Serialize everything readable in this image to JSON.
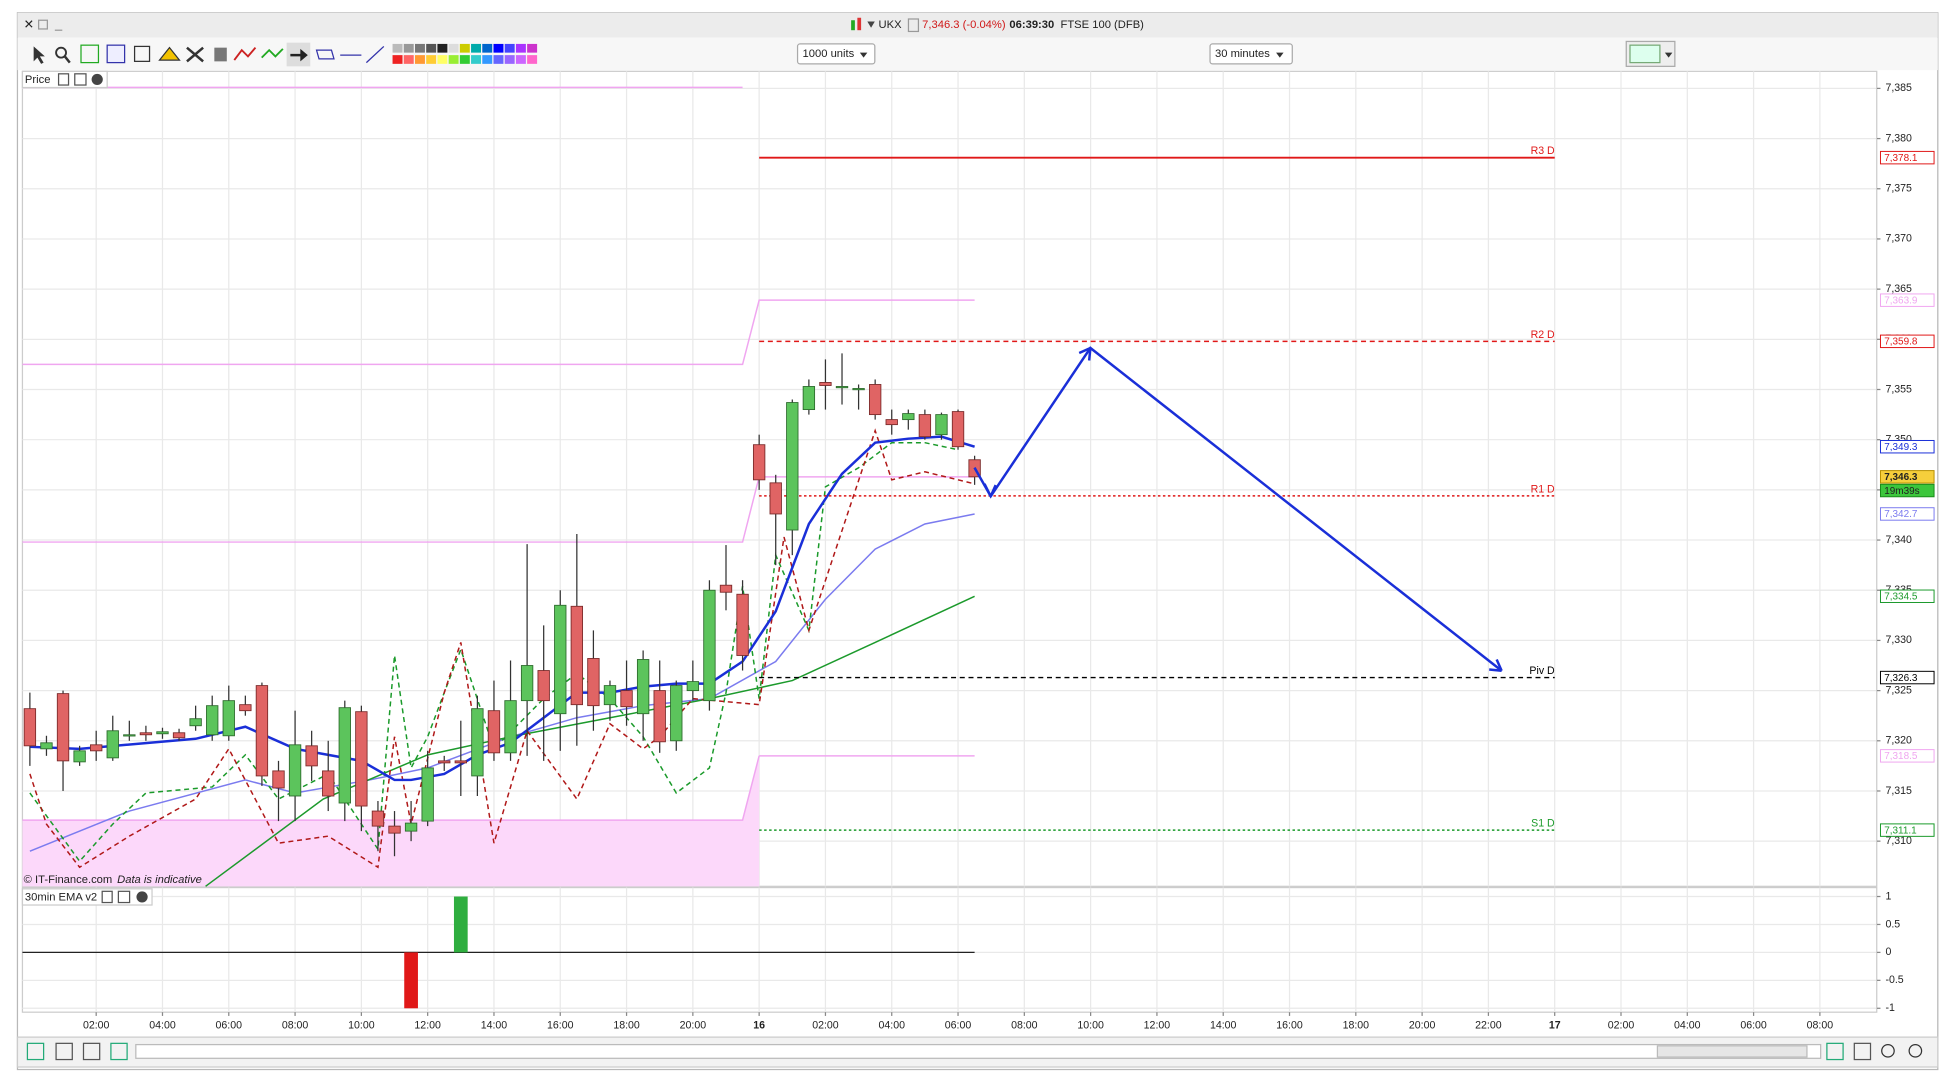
{
  "ui": {
    "symbol": "UKX",
    "quote": "7,346.3 (-0.04%)",
    "time": "06:39:30",
    "instrument": "FTSE 100 (DFB)",
    "units": "1000 units",
    "interval": "30 minutes",
    "price_panel": "Price",
    "copyright": "© IT-Finance.com",
    "disclaimer": "Data is indicative",
    "indicator_panel": "30min EMA v2"
  },
  "chart_data": [
    {
      "type": "candlestick",
      "grid": true,
      "up_color": "#5cc45c",
      "down_color": "#e06464",
      "xlim": [
        -0.45,
        111.43
      ],
      "ylim": [
        7305.5,
        7386.7
      ],
      "xticks": [
        {
          "value": 4,
          "label": "02:00"
        },
        {
          "value": 8,
          "label": "04:00"
        },
        {
          "value": 12,
          "label": "06:00"
        },
        {
          "value": 16,
          "label": "08:00"
        },
        {
          "value": 20,
          "label": "10:00"
        },
        {
          "value": 24,
          "label": "12:00"
        },
        {
          "value": 28,
          "label": "14:00"
        },
        {
          "value": 32,
          "label": "16:00"
        },
        {
          "value": 36,
          "label": "18:00"
        },
        {
          "value": 40,
          "label": "20:00"
        },
        {
          "value": 44,
          "label": "16"
        },
        {
          "value": 48,
          "label": "02:00"
        },
        {
          "value": 52,
          "label": "04:00"
        },
        {
          "value": 56,
          "label": "06:00"
        },
        {
          "value": 60,
          "label": "08:00"
        },
        {
          "value": 64,
          "label": "10:00"
        },
        {
          "value": 68,
          "label": "12:00"
        },
        {
          "value": 72,
          "label": "14:00"
        },
        {
          "value": 76,
          "label": "16:00"
        },
        {
          "value": 80,
          "label": "18:00"
        },
        {
          "value": 84,
          "label": "20:00"
        },
        {
          "value": 88,
          "label": "22:00"
        },
        {
          "value": 92,
          "label": "17"
        },
        {
          "value": 96,
          "label": "02:00"
        },
        {
          "value": 100,
          "label": "04:00"
        },
        {
          "value": 104,
          "label": "06:00"
        },
        {
          "value": 108,
          "label": "08:00"
        }
      ],
      "yticks": [
        {
          "value": 7385,
          "label": "7,385"
        },
        {
          "value": 7380,
          "label": "7,380"
        },
        {
          "value": 7375,
          "label": "7,375"
        },
        {
          "value": 7370,
          "label": "7,370"
        },
        {
          "value": 7365,
          "label": "7,365"
        },
        {
          "value": 7360,
          "label": "7,360"
        },
        {
          "value": 7355,
          "label": "7,355"
        },
        {
          "value": 7350,
          "label": "7,350"
        },
        {
          "value": 7345,
          "label": "7,345"
        },
        {
          "value": 7340,
          "label": "7,340"
        },
        {
          "value": 7335,
          "label": "7,335"
        },
        {
          "value": 7330,
          "label": "7,330"
        },
        {
          "value": 7325,
          "label": "7,325"
        },
        {
          "value": 7320,
          "label": "7,320"
        },
        {
          "value": 7315,
          "label": "7,315"
        },
        {
          "value": 7310,
          "label": "7,310"
        }
      ],
      "x": [
        0,
        1,
        2,
        3,
        4,
        5,
        6,
        7,
        8,
        9,
        10,
        11,
        12,
        13,
        14,
        15,
        16,
        17,
        18,
        19,
        20,
        21,
        22,
        23,
        24,
        25,
        26,
        27,
        28,
        29,
        30,
        31,
        32,
        33,
        34,
        35,
        36,
        37,
        38,
        39,
        40,
        41,
        42,
        43,
        44,
        45,
        46,
        47,
        48,
        49,
        50,
        51,
        52,
        53,
        54,
        55,
        56,
        57
      ],
      "open": [
        7323.2,
        7319.2,
        7324.7,
        7317.9,
        7319.6,
        7318.3,
        7320.5,
        7320.8,
        7320.7,
        7320.8,
        7321.5,
        7320.6,
        7320.5,
        7323.6,
        7325.5,
        7317.0,
        7314.5,
        7319.5,
        7317.0,
        7313.8,
        7322.9,
        7313.0,
        7311.5,
        7311.0,
        7312.0,
        7318.0,
        7318.0,
        7316.5,
        7323.0,
        7318.8,
        7324.0,
        7327.0,
        7322.7,
        7333.4,
        7328.2,
        7323.6,
        7325.0,
        7322.7,
        7325.0,
        7320.0,
        7325.0,
        7324.0,
        7335.5,
        7334.6,
        7349.5,
        7345.7,
        7341.0,
        7353.0,
        7355.7,
        7355.3,
        7355.0,
        7355.5,
        7352.0,
        7352.0,
        7352.5,
        7350.5,
        7352.8,
        7348.0
      ],
      "high": [
        7324.8,
        7320.5,
        7325.0,
        7319.5,
        7321.0,
        7322.5,
        7322.0,
        7321.5,
        7321.3,
        7321.2,
        7323.5,
        7324.5,
        7325.5,
        7324.5,
        7325.8,
        7318.0,
        7323.0,
        7321.0,
        7320.0,
        7324.0,
        7323.5,
        7314.0,
        7313.0,
        7314.0,
        7319.0,
        7318.5,
        7322.0,
        7324.5,
        7326.0,
        7328.0,
        7339.6,
        7331.5,
        7335.0,
        7340.6,
        7331.0,
        7326.0,
        7328.0,
        7329.0,
        7328.0,
        7326.0,
        7328.0,
        7336.0,
        7339.5,
        7336.0,
        7350.5,
        7346.5,
        7354.0,
        7356.0,
        7358.0,
        7358.6,
        7355.5,
        7356.0,
        7353.0,
        7353.0,
        7353.0,
        7352.7,
        7353.0,
        7348.4
      ],
      "low": [
        7317.5,
        7318.5,
        7315.0,
        7317.5,
        7318.0,
        7318.0,
        7320.0,
        7320.0,
        7320.2,
        7320.0,
        7321.0,
        7320.0,
        7320.0,
        7322.5,
        7315.5,
        7312.0,
        7312.0,
        7316.0,
        7313.0,
        7312.0,
        7311.0,
        7309.0,
        7308.5,
        7310.0,
        7311.5,
        7317.0,
        7314.5,
        7314.5,
        7318.0,
        7318.0,
        7318.5,
        7318.0,
        7319.0,
        7319.5,
        7321.0,
        7322.0,
        7321.5,
        7320.0,
        7318.8,
        7319.0,
        7324.0,
        7323.0,
        7333.0,
        7327.0,
        7345.0,
        7337.5,
        7338.5,
        7352.5,
        7353.0,
        7353.5,
        7353.0,
        7352.0,
        7350.5,
        7351.0,
        7350.0,
        7350.0,
        7349.0,
        7345.5
      ],
      "close": [
        7319.5,
        7319.8,
        7318.0,
        7319.0,
        7319.0,
        7321.0,
        7320.6,
        7320.6,
        7320.9,
        7320.3,
        7322.2,
        7323.5,
        7324.0,
        7323.0,
        7316.5,
        7315.3,
        7319.6,
        7317.5,
        7314.5,
        7323.3,
        7313.5,
        7311.5,
        7310.8,
        7311.8,
        7317.3,
        7317.8,
        7317.8,
        7323.2,
        7318.8,
        7324.0,
        7327.5,
        7324.0,
        7333.5,
        7323.6,
        7323.5,
        7325.5,
        7323.4,
        7328.1,
        7319.9,
        7325.5,
        7325.9,
        7335.0,
        7334.8,
        7328.5,
        7346.0,
        7342.6,
        7353.7,
        7355.3,
        7355.4,
        7355.3,
        7355.1,
        7352.5,
        7351.5,
        7352.6,
        7350.3,
        7352.5,
        7349.3,
        7346.3
      ],
      "last_label": "7,346.3",
      "countdown": "19m39s",
      "series": [
        {
          "color": "#f0a6f0",
          "x": [
            -0.45,
            43
          ],
          "values": [
            7385.1,
            7385.1
          ]
        },
        {
          "color": "#f0a6f0",
          "x": [
            -0.45,
            43,
            44,
            57
          ],
          "values": [
            7357.5,
            7357.5,
            7363.9,
            7363.9
          ],
          "tag": "7,363.9"
        },
        {
          "color": "#f0a6f0",
          "x": [
            -0.45,
            43,
            44,
            57
          ],
          "values": [
            7339.8,
            7339.8,
            7346.3,
            7346.3
          ]
        },
        {
          "color": "#f0a6f0",
          "x": [
            -0.45,
            43,
            44
          ],
          "values": [
            7312.1,
            7312.1,
            7318.5
          ],
          "fill": "#fcd8fa"
        },
        {
          "color": "#f0a6f0",
          "x": [
            44,
            57
          ],
          "values": [
            7318.5,
            7318.5
          ],
          "tag": "7,318.5"
        },
        {
          "color": "#7b7bef",
          "x": [
            0,
            6,
            13,
            16,
            20.5,
            24,
            29,
            33,
            37,
            41,
            45,
            48,
            51,
            54,
            57
          ],
          "values": [
            7309.0,
            7313.0,
            7316.1,
            7314.8,
            7316.1,
            7317.3,
            7320.4,
            7322.3,
            7323.5,
            7324.2,
            7327.9,
            7334.1,
            7339.1,
            7341.6,
            7342.6
          ],
          "tag": "7,342.7"
        },
        {
          "color": "#1c9a2c",
          "x": [
            10.6,
            17.7,
            24,
            29,
            35,
            41,
            46,
            51,
            57
          ],
          "values": [
            7305.5,
            7314.2,
            7318.6,
            7320.4,
            7322.3,
            7324.2,
            7326.0,
            7329.8,
            7334.4
          ],
          "tag": "7,334.5"
        },
        {
          "color": "#1a9a2a",
          "dashed": true,
          "x": [
            0,
            3,
            5,
            7,
            11,
            13,
            15,
            18,
            21,
            22,
            23,
            24,
            25,
            26,
            28,
            31,
            33,
            35,
            37,
            39,
            41,
            42,
            43,
            44,
            45,
            47,
            48,
            50,
            52,
            54,
            56
          ],
          "values": [
            7314.8,
            7308.0,
            7311.7,
            7314.8,
            7315.4,
            7318.6,
            7314.2,
            7316.7,
            7309.2,
            7328.5,
            7317.3,
            7320.4,
            7324.8,
            7329.1,
            7319.2,
            7324.2,
            7326.7,
            7324.2,
            7320.4,
            7314.8,
            7317.3,
            7324.8,
            7335.4,
            7324.2,
            7338.5,
            7331.0,
            7345.3,
            7347.2,
            7349.7,
            7349.7,
            7349.0
          ]
        },
        {
          "color": "#b01818",
          "dashed": true,
          "x": [
            0,
            1,
            3,
            6,
            10,
            12,
            15,
            18,
            21,
            22,
            23,
            25,
            26,
            28,
            30,
            33,
            35,
            37,
            38,
            40,
            44,
            45.5,
            47,
            51,
            52,
            54,
            57
          ],
          "values": [
            7316.7,
            7311.7,
            7307.4,
            7310.5,
            7314.2,
            7319.2,
            7309.8,
            7310.5,
            7307.4,
            7320.4,
            7311.7,
            7324.8,
            7329.8,
            7309.8,
            7321.0,
            7314.2,
            7321.7,
            7319.2,
            7320.4,
            7324.2,
            7323.6,
            7340.3,
            7331.0,
            7350.9,
            7346.0,
            7346.8,
            7345.6
          ]
        },
        {
          "color": "#1a2fd8",
          "width": 2,
          "x": [
            0,
            3,
            10,
            13,
            16,
            18,
            20,
            22,
            23,
            25,
            27,
            29,
            31,
            33,
            35,
            37,
            39,
            41,
            43,
            45,
            47,
            49,
            51,
            53,
            55,
            57
          ],
          "values": [
            7319.4,
            7319.2,
            7320.2,
            7321.4,
            7319.2,
            7318.6,
            7318.0,
            7316.1,
            7316.1,
            7316.7,
            7318.6,
            7319.8,
            7322.3,
            7324.8,
            7324.8,
            7325.4,
            7325.7,
            7325.7,
            7327.9,
            7332.9,
            7341.6,
            7346.6,
            7349.7,
            7350.1,
            7350.3,
            7349.3
          ],
          "tag": "7,349.3"
        }
      ],
      "levels": [
        {
          "name": "R3 D",
          "value": 7378.1,
          "value_label": "7,378.1",
          "color": "#e01818",
          "style": "solid",
          "x": [
            44,
            92
          ]
        },
        {
          "name": "R2 D",
          "value": 7359.8,
          "value_label": "7,359.8",
          "color": "#e01818",
          "style": "dashed",
          "x": [
            44,
            92
          ]
        },
        {
          "name": "R1 D",
          "value": 7344.4,
          "color": "#e01818",
          "style": "dotted",
          "x": [
            44,
            92
          ]
        },
        {
          "name": "Piv D",
          "value": 7326.3,
          "value_label": "7,326.3",
          "color": "#000000",
          "style": "dashed",
          "x": [
            44,
            92
          ]
        },
        {
          "name": "S1 D",
          "value": 7311.1,
          "value_label": "7,311.1",
          "color": "#1a9a2a",
          "style": "dotted",
          "x": [
            44,
            92
          ]
        }
      ]
    },
    {
      "type": "bar",
      "grid": true,
      "up_color": "#2fae3f",
      "down_color": "#e01818",
      "ylim": [
        -1.07,
        1.16
      ],
      "yticks": [
        1,
        0.5,
        0,
        -0.5,
        -1
      ],
      "x": [
        23,
        26
      ],
      "values": [
        -1,
        1
      ]
    }
  ]
}
